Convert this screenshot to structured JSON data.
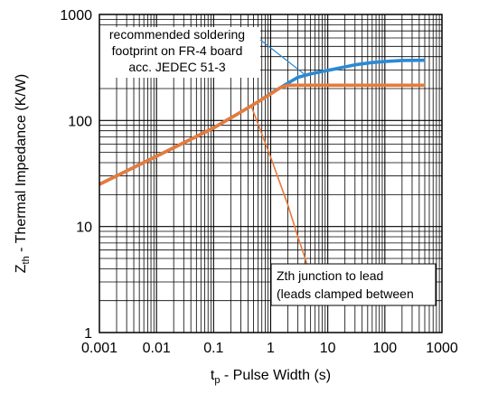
{
  "chart_data": {
    "type": "line",
    "xscale": "log",
    "yscale": "log",
    "xlim": [
      0.001,
      1000
    ],
    "ylim": [
      1,
      1000
    ],
    "grid": true,
    "xlabel": {
      "main": "t",
      "sub": "p",
      "rest": " - Pulse Width (s)"
    },
    "ylabel": {
      "main": "Z",
      "sub": "th",
      "rest": " - Thermal Impedance (K/W)"
    },
    "xticks": [
      0.001,
      0.01,
      0.1,
      1,
      10,
      100,
      1000
    ],
    "xtick_labels": [
      "0.001",
      "0.01",
      "0.1",
      "1",
      "10",
      "100",
      "1000"
    ],
    "yticks": [
      1,
      10,
      100,
      1000
    ],
    "ytick_labels": [
      "1",
      "10",
      "100",
      "1000"
    ],
    "series": [
      {
        "color": "#2a8ad4",
        "points": [
          [
            0.001,
            25
          ],
          [
            0.01,
            46
          ],
          [
            0.1,
            85
          ],
          [
            0.3,
            120
          ],
          [
            0.6,
            150
          ],
          [
            1,
            180
          ],
          [
            2,
            225
          ],
          [
            3,
            255
          ],
          [
            5,
            275
          ],
          [
            8,
            290
          ],
          [
            15,
            310
          ],
          [
            30,
            335
          ],
          [
            60,
            352
          ],
          [
            100,
            360
          ],
          [
            200,
            368
          ],
          [
            500,
            370
          ]
        ]
      },
      {
        "color": "#e87a38",
        "points": [
          [
            0.001,
            25
          ],
          [
            0.01,
            46
          ],
          [
            0.1,
            85
          ],
          [
            0.3,
            120
          ],
          [
            0.6,
            150
          ],
          [
            1,
            178
          ],
          [
            1.5,
            205
          ],
          [
            2,
            215
          ],
          [
            5,
            215
          ],
          [
            50,
            215
          ],
          [
            500,
            215
          ]
        ]
      },
      {
        "color": "#e87a38",
        "points": [
          [
            0.45,
            140
          ],
          [
            1,
            45
          ],
          [
            2,
            16
          ],
          [
            3,
            8
          ],
          [
            5,
            3.5
          ]
        ]
      }
    ],
    "annotations": [
      {
        "lines": [
          "recommended soldering",
          "footprint on FR-4 board",
          "acc. JEDEC 51-3"
        ],
        "pointer_to": [
          4,
          270
        ]
      },
      {
        "lines": [
          "Zth junction to lead",
          "(leads clamped between"
        ]
      }
    ]
  }
}
